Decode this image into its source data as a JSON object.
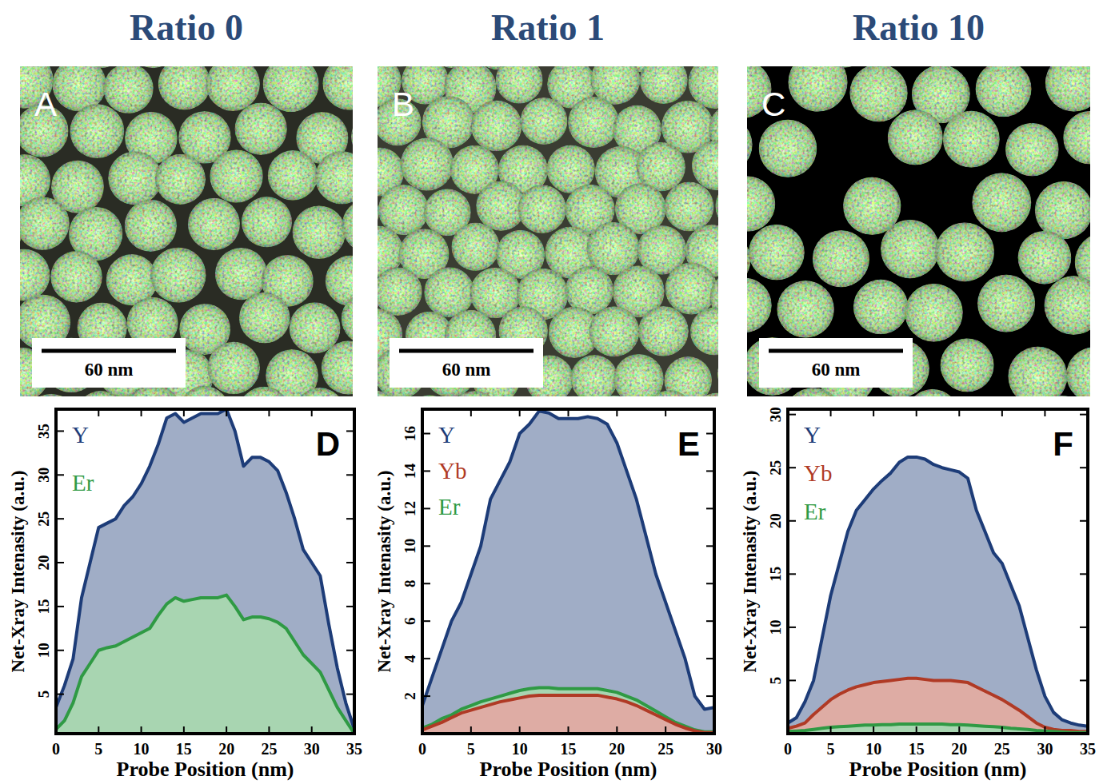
{
  "panels": [
    {
      "title": "Ratio 0",
      "letter": "A",
      "scale_bar": "60 nm"
    },
    {
      "title": "Ratio 1",
      "letter": "B",
      "scale_bar": "60 nm"
    },
    {
      "title": "Ratio 10",
      "letter": "C",
      "scale_bar": "60 nm"
    }
  ],
  "chart_data": [
    {
      "type": "area",
      "panel_label": "D",
      "x_label": "Probe Position (nm)",
      "y_label": "Net-Xray Intenasity (a.u.)",
      "xlim": [
        0,
        35
      ],
      "xticks": [
        0,
        5,
        10,
        15,
        20,
        25,
        30,
        35
      ],
      "ylim": [
        0.5,
        37.5
      ],
      "yticks": [
        5,
        10,
        15,
        20,
        25,
        30,
        35
      ],
      "legend": "upper left",
      "x": [
        0,
        1,
        2,
        3,
        4,
        5,
        6,
        7,
        8,
        9,
        10,
        11,
        12,
        13,
        14,
        15,
        16,
        17,
        18,
        19,
        20,
        21,
        22,
        23,
        24,
        25,
        26,
        27,
        28,
        29,
        30,
        31,
        32,
        33,
        34,
        35
      ],
      "series": [
        {
          "name": "Y",
          "color": "#1d3c78",
          "values": [
            3.5,
            6,
            9,
            16,
            20,
            24,
            24.5,
            25,
            26.5,
            27.5,
            29,
            31,
            33.5,
            36.5,
            37,
            36,
            36.5,
            37,
            37,
            37,
            37.5,
            35,
            31,
            32,
            32,
            31.5,
            30.5,
            28,
            25,
            21.5,
            20,
            18.5,
            13,
            8,
            4,
            1
          ]
        },
        {
          "name": "Er",
          "color": "#2f9a44",
          "values": [
            1,
            2,
            4,
            7,
            8.5,
            10,
            10.3,
            10.5,
            11,
            11.5,
            12,
            12.5,
            14,
            15.3,
            16,
            15.6,
            15.8,
            16,
            16,
            16,
            16.3,
            15,
            13.5,
            13.8,
            13.8,
            13.6,
            13.2,
            12.5,
            11,
            9.5,
            8.5,
            7.5,
            5.5,
            3.5,
            2,
            0.5
          ]
        }
      ]
    },
    {
      "type": "area",
      "panel_label": "E",
      "x_label": "Probe Position (nm)",
      "y_label": "Net-Xray Intenasity (a.u.)",
      "xlim": [
        0,
        30
      ],
      "xticks": [
        0,
        5,
        10,
        15,
        20,
        25,
        30
      ],
      "ylim": [
        0,
        17.3
      ],
      "yticks": [
        2,
        4,
        6,
        8,
        10,
        12,
        14,
        16
      ],
      "legend": "upper left",
      "x": [
        0,
        1,
        2,
        3,
        4,
        5,
        6,
        7,
        8,
        9,
        10,
        11,
        12,
        13,
        14,
        15,
        16,
        17,
        18,
        19,
        20,
        21,
        22,
        23,
        24,
        25,
        26,
        27,
        28,
        29,
        30
      ],
      "series": [
        {
          "name": "Y",
          "color": "#1d3c78",
          "values": [
            1.5,
            3,
            4.5,
            6,
            7,
            8.5,
            10,
            12.5,
            13.5,
            14.5,
            16,
            16.5,
            17.2,
            17.1,
            16.8,
            16.8,
            16.8,
            16.9,
            16.8,
            16.5,
            15.5,
            14,
            12.5,
            10.5,
            8.5,
            7,
            5.5,
            4,
            2,
            1.3,
            1.4
          ]
        },
        {
          "name": "Yb",
          "color": "#b03a25",
          "values": [
            0.2,
            0.4,
            0.6,
            0.85,
            1.1,
            1.25,
            1.4,
            1.55,
            1.7,
            1.8,
            1.9,
            2,
            2.05,
            2.05,
            2.05,
            2.05,
            2.05,
            2.05,
            2.05,
            1.95,
            1.85,
            1.7,
            1.5,
            1.25,
            1,
            0.75,
            0.5,
            0.3,
            0.15,
            0.05,
            0.05
          ]
        },
        {
          "name": "Er",
          "color": "#2f9a44",
          "values": [
            0.3,
            0.5,
            0.8,
            1,
            1.3,
            1.5,
            1.7,
            1.85,
            2,
            2.15,
            2.3,
            2.4,
            2.45,
            2.45,
            2.4,
            2.4,
            2.4,
            2.4,
            2.4,
            2.3,
            2.2,
            2,
            1.8,
            1.5,
            1.2,
            0.9,
            0.6,
            0.4,
            0.2,
            0.1,
            0.1
          ]
        }
      ]
    },
    {
      "type": "area",
      "panel_label": "F",
      "x_label": "Probe Position (nm)",
      "y_label": "Net-Xray Intenasity (a.u.)",
      "xlim": [
        0,
        35
      ],
      "xticks": [
        0,
        5,
        10,
        15,
        20,
        25,
        30,
        35
      ],
      "ylim": [
        0,
        30.5
      ],
      "yticks": [
        5,
        10,
        15,
        20,
        25,
        30
      ],
      "legend": "upper left",
      "x": [
        0,
        1,
        2,
        3,
        4,
        5,
        6,
        7,
        8,
        9,
        10,
        11,
        12,
        13,
        14,
        15,
        16,
        17,
        18,
        19,
        20,
        21,
        22,
        23,
        24,
        25,
        26,
        27,
        28,
        29,
        30,
        31,
        32,
        33,
        34,
        35
      ],
      "series": [
        {
          "name": "Y",
          "color": "#1d3c78",
          "values": [
            1,
            1.5,
            3,
            5,
            9,
            13,
            16,
            19,
            21,
            22,
            23,
            23.8,
            24.5,
            25.5,
            26,
            26,
            25.8,
            25.3,
            25,
            24.8,
            24.6,
            24,
            21,
            19,
            17,
            16,
            14,
            12,
            9,
            6,
            3.5,
            2,
            1.3,
            1,
            0.8,
            0.7
          ]
        },
        {
          "name": "Yb",
          "color": "#b03a25",
          "values": [
            0.5,
            0.7,
            1,
            1.8,
            2.5,
            3.2,
            3.7,
            4.1,
            4.4,
            4.6,
            4.8,
            4.9,
            5,
            5.1,
            5.2,
            5.2,
            5.1,
            5,
            5,
            5,
            4.9,
            4.8,
            4.4,
            4,
            3.6,
            3.2,
            2.7,
            2.2,
            1.6,
            1,
            0.6,
            0.4,
            0.3,
            0.3,
            0.2,
            0.2
          ]
        },
        {
          "name": "Er",
          "color": "#2f9a44",
          "values": [
            0.2,
            0.25,
            0.3,
            0.4,
            0.5,
            0.6,
            0.65,
            0.7,
            0.75,
            0.8,
            0.8,
            0.85,
            0.85,
            0.9,
            0.9,
            0.9,
            0.9,
            0.9,
            0.9,
            0.85,
            0.85,
            0.8,
            0.75,
            0.7,
            0.65,
            0.6,
            0.5,
            0.45,
            0.4,
            0.3,
            0.25,
            0.2,
            0.15,
            0.1,
            0.1,
            0.1
          ]
        }
      ]
    }
  ]
}
